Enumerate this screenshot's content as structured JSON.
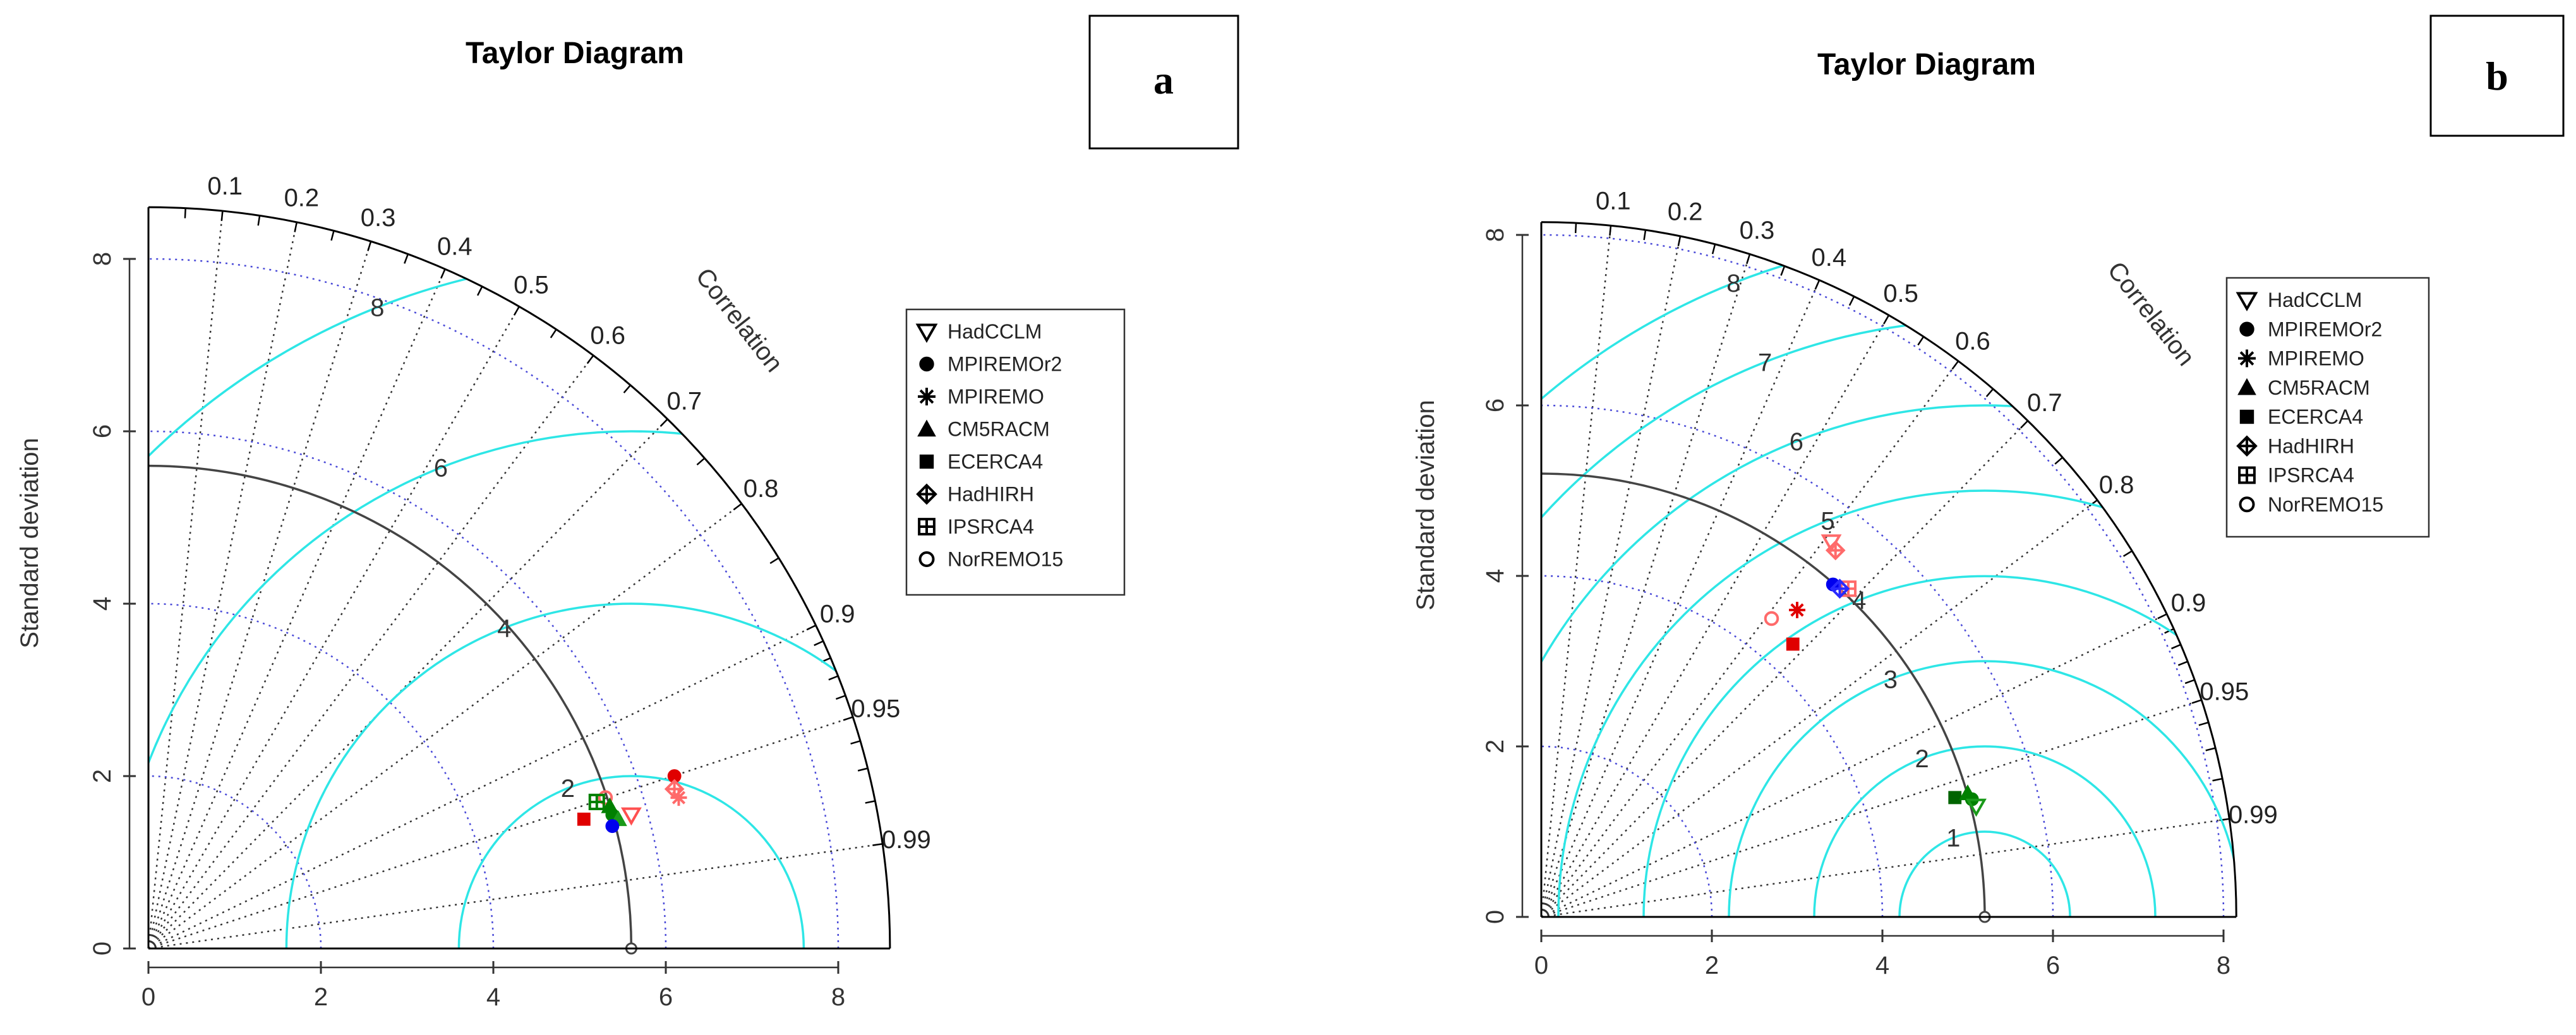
{
  "chart_data": [
    {
      "type": "taylor",
      "title": "Taylor Diagram",
      "panel_label": "a",
      "ylabel": "Standard deviation",
      "corr_label": "Correlation",
      "sd_max": 8.6,
      "sd_ticks": [
        0,
        2,
        4,
        6,
        8
      ],
      "ref_sd": 5.6,
      "corr_ticks": [
        0.1,
        0.2,
        0.3,
        0.4,
        0.5,
        0.6,
        0.7,
        0.8,
        0.9,
        0.95,
        0.99
      ],
      "sd_gridlines": [
        2,
        4,
        6,
        8
      ],
      "rms_levels": [
        2,
        4,
        6,
        8
      ],
      "rms_label_levels": [
        2,
        4,
        6,
        8
      ],
      "legend": [
        {
          "label": "HadCCLM",
          "symbol": "triangle-down-open"
        },
        {
          "label": "MPIREMOr2",
          "symbol": "circle-filled"
        },
        {
          "label": "MPIREMO",
          "symbol": "asterisk"
        },
        {
          "label": "CM5RACM",
          "symbol": "triangle-filled"
        },
        {
          "label": "ECERCA4",
          "symbol": "square-filled"
        },
        {
          "label": "HadHIRH",
          "symbol": "diamond-plus"
        },
        {
          "label": "IPSRCA4",
          "symbol": "square-plus"
        },
        {
          "label": "NorREMO15",
          "symbol": "circle-open"
        }
      ],
      "points": [
        {
          "model": "MPIREMOr2",
          "x": 6.1,
          "y": 2.0,
          "color": "#e00000"
        },
        {
          "model": "HadHIRH",
          "x": 6.1,
          "y": 1.85,
          "color": "#ff6a6a"
        },
        {
          "model": "MPIREMO",
          "x": 6.15,
          "y": 1.75,
          "color": "#ff6a6a"
        },
        {
          "model": "HadCCLM",
          "x": 5.6,
          "y": 1.55,
          "color": "#ff5050"
        },
        {
          "model": "NorREMO15",
          "x": 5.3,
          "y": 1.75,
          "color": "#ff6a6a"
        },
        {
          "model": "IPSRCA4",
          "x": 5.2,
          "y": 1.7,
          "color": "#008000"
        },
        {
          "model": "CM5RACM",
          "x": 5.35,
          "y": 1.65,
          "color": "#008000"
        },
        {
          "model": "MPIREMOr2",
          "x": 5.38,
          "y": 1.55,
          "color": "#008000"
        },
        {
          "model": "CM5RACM",
          "x": 5.45,
          "y": 1.5,
          "color": "#1a9a1a"
        },
        {
          "model": "ECERCA4",
          "x": 5.05,
          "y": 1.5,
          "color": "#e00000"
        },
        {
          "model": "MPIREMOr2",
          "x": 5.38,
          "y": 1.42,
          "color": "#0000ee"
        }
      ]
    },
    {
      "type": "taylor",
      "title": "Taylor Diagram",
      "panel_label": "b",
      "ylabel": "Standard deviation",
      "corr_label": "Correlation",
      "sd_max": 8.15,
      "sd_ticks": [
        0,
        2,
        4,
        6,
        8
      ],
      "ref_sd": 5.2,
      "corr_ticks": [
        0.1,
        0.2,
        0.3,
        0.4,
        0.5,
        0.6,
        0.7,
        0.8,
        0.9,
        0.95,
        0.99
      ],
      "sd_gridlines": [
        2,
        4,
        6,
        8
      ],
      "rms_levels": [
        1,
        2,
        3,
        4,
        5,
        6,
        7,
        8
      ],
      "rms_label_levels": [
        1,
        2,
        3,
        4,
        5,
        6,
        7,
        8
      ],
      "legend": [
        {
          "label": "HadCCLM",
          "symbol": "triangle-down-open"
        },
        {
          "label": "MPIREMOr2",
          "symbol": "circle-filled"
        },
        {
          "label": "MPIREMO",
          "symbol": "asterisk"
        },
        {
          "label": "CM5RACM",
          "symbol": "triangle-filled"
        },
        {
          "label": "ECERCA4",
          "symbol": "square-filled"
        },
        {
          "label": "HadHIRH",
          "symbol": "diamond-plus"
        },
        {
          "label": "IPSRCA4",
          "symbol": "square-plus"
        },
        {
          "label": "NorREMO15",
          "symbol": "circle-open"
        }
      ],
      "points": [
        {
          "model": "HadCCLM",
          "x": 3.4,
          "y": 4.4,
          "color": "#ff6a6a"
        },
        {
          "model": "HadHIRH",
          "x": 3.45,
          "y": 4.3,
          "color": "#ff6a6a"
        },
        {
          "model": "IPSRCA4",
          "x": 3.6,
          "y": 3.85,
          "color": "#ff6a6a"
        },
        {
          "model": "MPIREMOr2",
          "x": 3.42,
          "y": 3.9,
          "color": "#0000ee"
        },
        {
          "model": "HadHIRH",
          "x": 3.5,
          "y": 3.85,
          "color": "#2a2aff"
        },
        {
          "model": "MPIREMO",
          "x": 3.0,
          "y": 3.6,
          "color": "#e00000"
        },
        {
          "model": "NorREMO15",
          "x": 2.7,
          "y": 3.5,
          "color": "#ff6a6a"
        },
        {
          "model": "ECERCA4",
          "x": 2.95,
          "y": 3.2,
          "color": "#e00000"
        },
        {
          "model": "ECERCA4",
          "x": 4.85,
          "y": 1.4,
          "color": "#006400"
        },
        {
          "model": "CM5RACM",
          "x": 5.0,
          "y": 1.45,
          "color": "#008000"
        },
        {
          "model": "MPIREMOr2",
          "x": 5.05,
          "y": 1.38,
          "color": "#008000"
        },
        {
          "model": "HadCCLM",
          "x": 5.1,
          "y": 1.3,
          "color": "#1a9a1a"
        }
      ]
    }
  ]
}
